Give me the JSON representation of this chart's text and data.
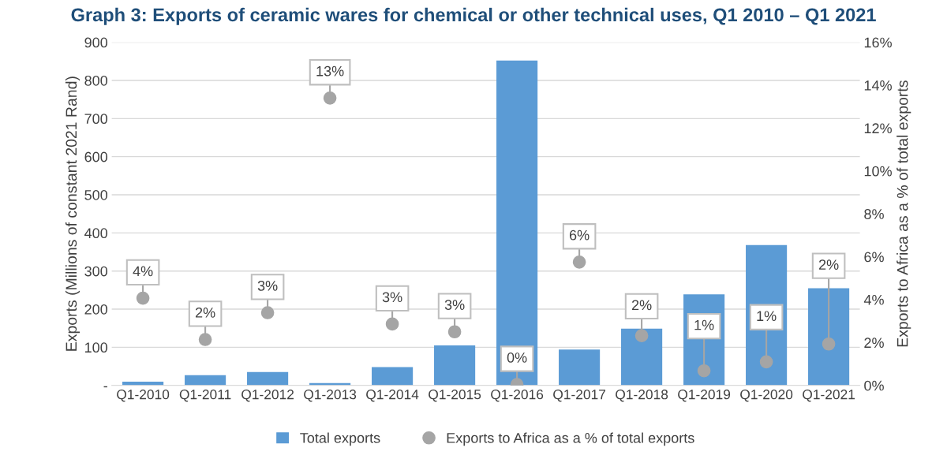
{
  "chart_data": {
    "type": "bar",
    "title": "Graph 3: Exports of ceramic wares for chemical or other technical uses, Q1 2010 – Q1 2021",
    "categories": [
      "Q1-2010",
      "Q1-2011",
      "Q1-2012",
      "Q1-2013",
      "Q1-2014",
      "Q1-2015",
      "Q1-2016",
      "Q1-2017",
      "Q1-2018",
      "Q1-2019",
      "Q1-2020",
      "Q1-2021"
    ],
    "series": [
      {
        "name": "Total exports",
        "color": "#5b9bd5",
        "values": [
          10,
          27,
          35,
          6,
          48,
          105,
          852,
          94,
          149,
          239,
          368,
          255
        ]
      },
      {
        "name": "Exports to Africa as a % of total exports",
        "type": "scatter",
        "axis": "y2",
        "color": "#a5a5a5",
        "marker": "circle",
        "values": [
          4.07,
          2.14,
          3.39,
          13.4,
          2.86,
          2.5,
          0.04,
          5.75,
          2.32,
          0.68,
          1.1,
          1.93
        ],
        "value_labels": [
          "4%",
          "2%",
          "3%",
          "13%",
          "3%",
          "3%",
          "0%",
          "6%",
          "2%",
          "1%",
          "1%",
          "2%"
        ]
      }
    ],
    "ylabel": "Exports (Millions of constant 2021 Rand)",
    "y2label": "Exports to Africa as a % of total exports",
    "ylim": [
      0,
      900
    ],
    "yticks": [
      {
        "value": 0,
        "label": "-"
      },
      100,
      200,
      300,
      400,
      500,
      600,
      700,
      800,
      900
    ],
    "y2lim": [
      0,
      16
    ],
    "y2ticks": [
      {
        "value": 0,
        "label": "0%"
      },
      {
        "value": 2,
        "label": "2%"
      },
      {
        "value": 4,
        "label": "4%"
      },
      {
        "value": 6,
        "label": "6%"
      },
      {
        "value": 8,
        "label": "8%"
      },
      {
        "value": 10,
        "label": "10%"
      },
      {
        "value": 12,
        "label": "12%"
      },
      {
        "value": 14,
        "label": "14%"
      },
      {
        "value": 16,
        "label": "16%"
      }
    ],
    "grid": "y",
    "legend": "bottom"
  }
}
